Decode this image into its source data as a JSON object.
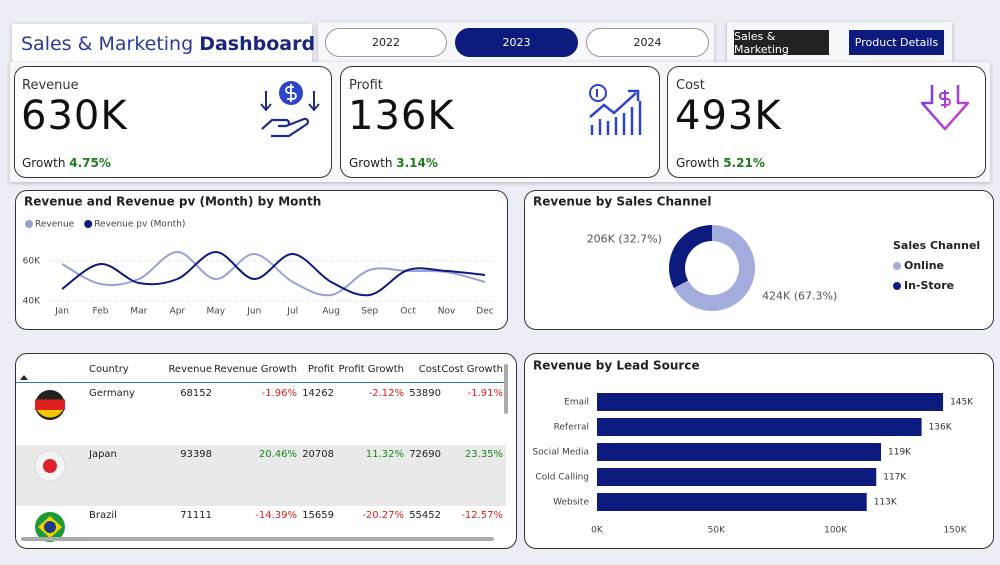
{
  "header": {
    "title": "Sales & Marketing",
    "title_emphasis": "Dashboard"
  },
  "year_buttons": [
    {
      "label": "2022",
      "selected": false
    },
    {
      "label": "2023",
      "selected": true
    },
    {
      "label": "2024",
      "selected": false
    }
  ],
  "nav_buttons": [
    "Sales & Marketing",
    "Product Details"
  ],
  "kpis": [
    {
      "label": "Revenue",
      "value": "630K",
      "growth_label": "Growth",
      "growth": "4.75%"
    },
    {
      "label": "Profit",
      "value": "136K",
      "growth_label": "Growth",
      "growth": "3.14%"
    },
    {
      "label": "Cost",
      "value": "493K",
      "growth_label": "Growth",
      "growth": "5.21%"
    }
  ],
  "chart_data": [
    {
      "type": "line",
      "title": "Revenue and Revenue pv (Month) by Month",
      "categories": [
        "Jan",
        "Feb",
        "Mar",
        "Apr",
        "May",
        "Jun",
        "Jul",
        "Aug",
        "Sep",
        "Oct",
        "Nov",
        "Dec"
      ],
      "series": [
        {
          "name": "Revenue",
          "color": "#97a1d8",
          "values": [
            58500,
            48500,
            51000,
            64500,
            51000,
            63500,
            49500,
            43000,
            55500,
            55000,
            54500,
            49500
          ]
        },
        {
          "name": "Revenue pv (Month)",
          "color": "#0d1a7e",
          "values": [
            46000,
            58500,
            49000,
            51000,
            64500,
            51000,
            63500,
            49500,
            43000,
            55500,
            55000,
            53000
          ]
        }
      ],
      "ylim": [
        38000,
        68000
      ],
      "yticks": [
        {
          "value": 40000,
          "label": "40K"
        },
        {
          "value": 60000,
          "label": "60K"
        }
      ],
      "grid": true
    },
    {
      "type": "donut",
      "title": "Revenue by Sales Channel",
      "legend_title": "Sales Channel",
      "categories": [
        "Online",
        "In-Store"
      ],
      "values": [
        424000,
        206000
      ],
      "value_labels": [
        "424K (67.3%)",
        "206K (32.7%)"
      ],
      "colors": [
        "#a3acdc",
        "#0d1a7e"
      ]
    },
    {
      "type": "bar",
      "title": "Revenue by Lead Source",
      "orientation": "horizontal",
      "categories": [
        "Email",
        "Referral",
        "Social Media",
        "Cold Calling",
        "Website"
      ],
      "values": [
        145000,
        136000,
        119000,
        117000,
        113000
      ],
      "value_labels": [
        "145K",
        "136K",
        "119K",
        "117K",
        "113K"
      ],
      "color": "#0d1a7e",
      "xlim": [
        0,
        150000
      ],
      "xticks": [
        {
          "value": 0,
          "label": "0K"
        },
        {
          "value": 50000,
          "label": "50K"
        },
        {
          "value": 100000,
          "label": "100K"
        },
        {
          "value": 150000,
          "label": "150K"
        }
      ],
      "grid": false
    }
  ],
  "table": {
    "columns": [
      "Country",
      "Revenue",
      "Revenue Growth",
      "Profit",
      "Profit Growth",
      "Cost",
      "Cost Growth"
    ],
    "rows": [
      [
        "Germany",
        "68152",
        "-1.96%",
        "14262",
        "-2.12%",
        "53890",
        "-1.91%"
      ],
      [
        "Japan",
        "93398",
        "20.46%",
        "20708",
        "11.32%",
        "72690",
        "23.35%"
      ],
      [
        "Brazil",
        "71111",
        "-14.39%",
        "15659",
        "-20.27%",
        "55452",
        "-12.57%"
      ]
    ]
  }
}
